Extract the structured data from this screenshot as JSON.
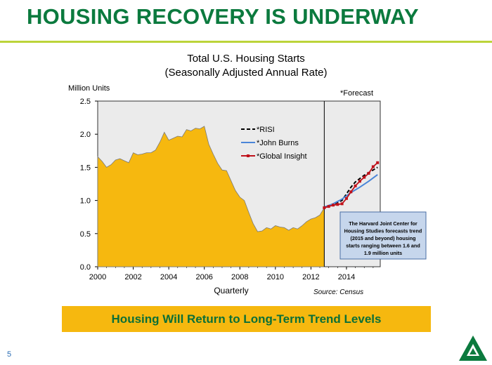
{
  "slide": {
    "title": "HOUSING RECOVERY IS UNDERWAY",
    "banner": "Housing Will Return to Long-Term Trend Levels",
    "page_number": "5"
  },
  "colors": {
    "title": "#0b7a3e",
    "rule": "#bcd43a",
    "area_fill": "#f6b80f",
    "plot_bg": "#ebebeb",
    "risi": "#000000",
    "john_burns": "#4a86d8",
    "global_insight": "#c0121b",
    "note_box": "#c6d6ec"
  },
  "chart_data": {
    "type": "area",
    "title": "Total U.S. Housing Starts",
    "subtitle": "(Seasonally Adjusted Annual Rate)",
    "ylabel": "Million Units",
    "xlabel": "Quarterly",
    "source": "Source: Census",
    "forecast_label": "*Forecast",
    "forecast_start": 2012.75,
    "xlim": [
      2000,
      2015.9
    ],
    "ylim": [
      0,
      2.5
    ],
    "x_ticks": [
      "2000",
      "2002",
      "2004",
      "2006",
      "2008",
      "2010",
      "2012",
      "2014"
    ],
    "y_ticks": [
      "0.0",
      "0.5",
      "1.0",
      "1.5",
      "2.0",
      "2.5"
    ],
    "note": "The Harvard Joint Center for Housing Studies forecasts trend (2015 and beyond) housing starts ranging between 1.6 and 1.9 million units",
    "actual": {
      "x": [
        2000,
        2000.25,
        2000.5,
        2000.75,
        2001,
        2001.25,
        2001.5,
        2001.75,
        2002,
        2002.25,
        2002.5,
        2002.75,
        2003,
        2003.25,
        2003.5,
        2003.75,
        2004,
        2004.25,
        2004.5,
        2004.75,
        2005,
        2005.25,
        2005.5,
        2005.75,
        2006,
        2006.25,
        2006.5,
        2006.75,
        2007,
        2007.25,
        2007.5,
        2007.75,
        2008,
        2008.25,
        2008.5,
        2008.75,
        2009,
        2009.25,
        2009.5,
        2009.75,
        2010,
        2010.25,
        2010.5,
        2010.75,
        2011,
        2011.25,
        2011.5,
        2011.75,
        2012,
        2012.25,
        2012.5,
        2012.75
      ],
      "y": [
        1.66,
        1.59,
        1.5,
        1.54,
        1.61,
        1.63,
        1.6,
        1.57,
        1.72,
        1.69,
        1.7,
        1.72,
        1.72,
        1.76,
        1.88,
        2.03,
        1.91,
        1.94,
        1.97,
        1.96,
        2.07,
        2.05,
        2.09,
        2.08,
        2.12,
        1.85,
        1.7,
        1.56,
        1.46,
        1.45,
        1.3,
        1.15,
        1.05,
        1.0,
        0.82,
        0.65,
        0.53,
        0.54,
        0.59,
        0.57,
        0.62,
        0.6,
        0.59,
        0.55,
        0.59,
        0.57,
        0.62,
        0.68,
        0.72,
        0.74,
        0.78,
        0.89
      ]
    },
    "series": [
      {
        "name": "*RISI",
        "style": "dashed",
        "x": [
          2012.75,
          2013,
          2013.25,
          2013.5,
          2013.75,
          2014,
          2014.25,
          2014.5,
          2014.75,
          2015,
          2015.25,
          2015.5,
          2015.75
        ],
        "y": [
          0.9,
          0.92,
          0.94,
          0.97,
          1.0,
          1.1,
          1.2,
          1.28,
          1.33,
          1.38,
          1.42,
          1.46,
          1.5
        ]
      },
      {
        "name": "*John Burns",
        "style": "solid",
        "x": [
          2012.75,
          2013.25,
          2013.75,
          2014.25,
          2014.75,
          2015.25,
          2015.75
        ],
        "y": [
          0.9,
          0.95,
          1.02,
          1.12,
          1.2,
          1.29,
          1.39
        ]
      },
      {
        "name": "*Global Insight",
        "style": "solid-markers",
        "x": [
          2012.75,
          2013,
          2013.25,
          2013.5,
          2013.75,
          2014,
          2014.25,
          2014.5,
          2014.75,
          2015,
          2015.25,
          2015.5,
          2015.75
        ],
        "y": [
          0.89,
          0.91,
          0.93,
          0.94,
          0.95,
          1.03,
          1.13,
          1.22,
          1.29,
          1.35,
          1.41,
          1.51,
          1.57
        ]
      }
    ]
  }
}
